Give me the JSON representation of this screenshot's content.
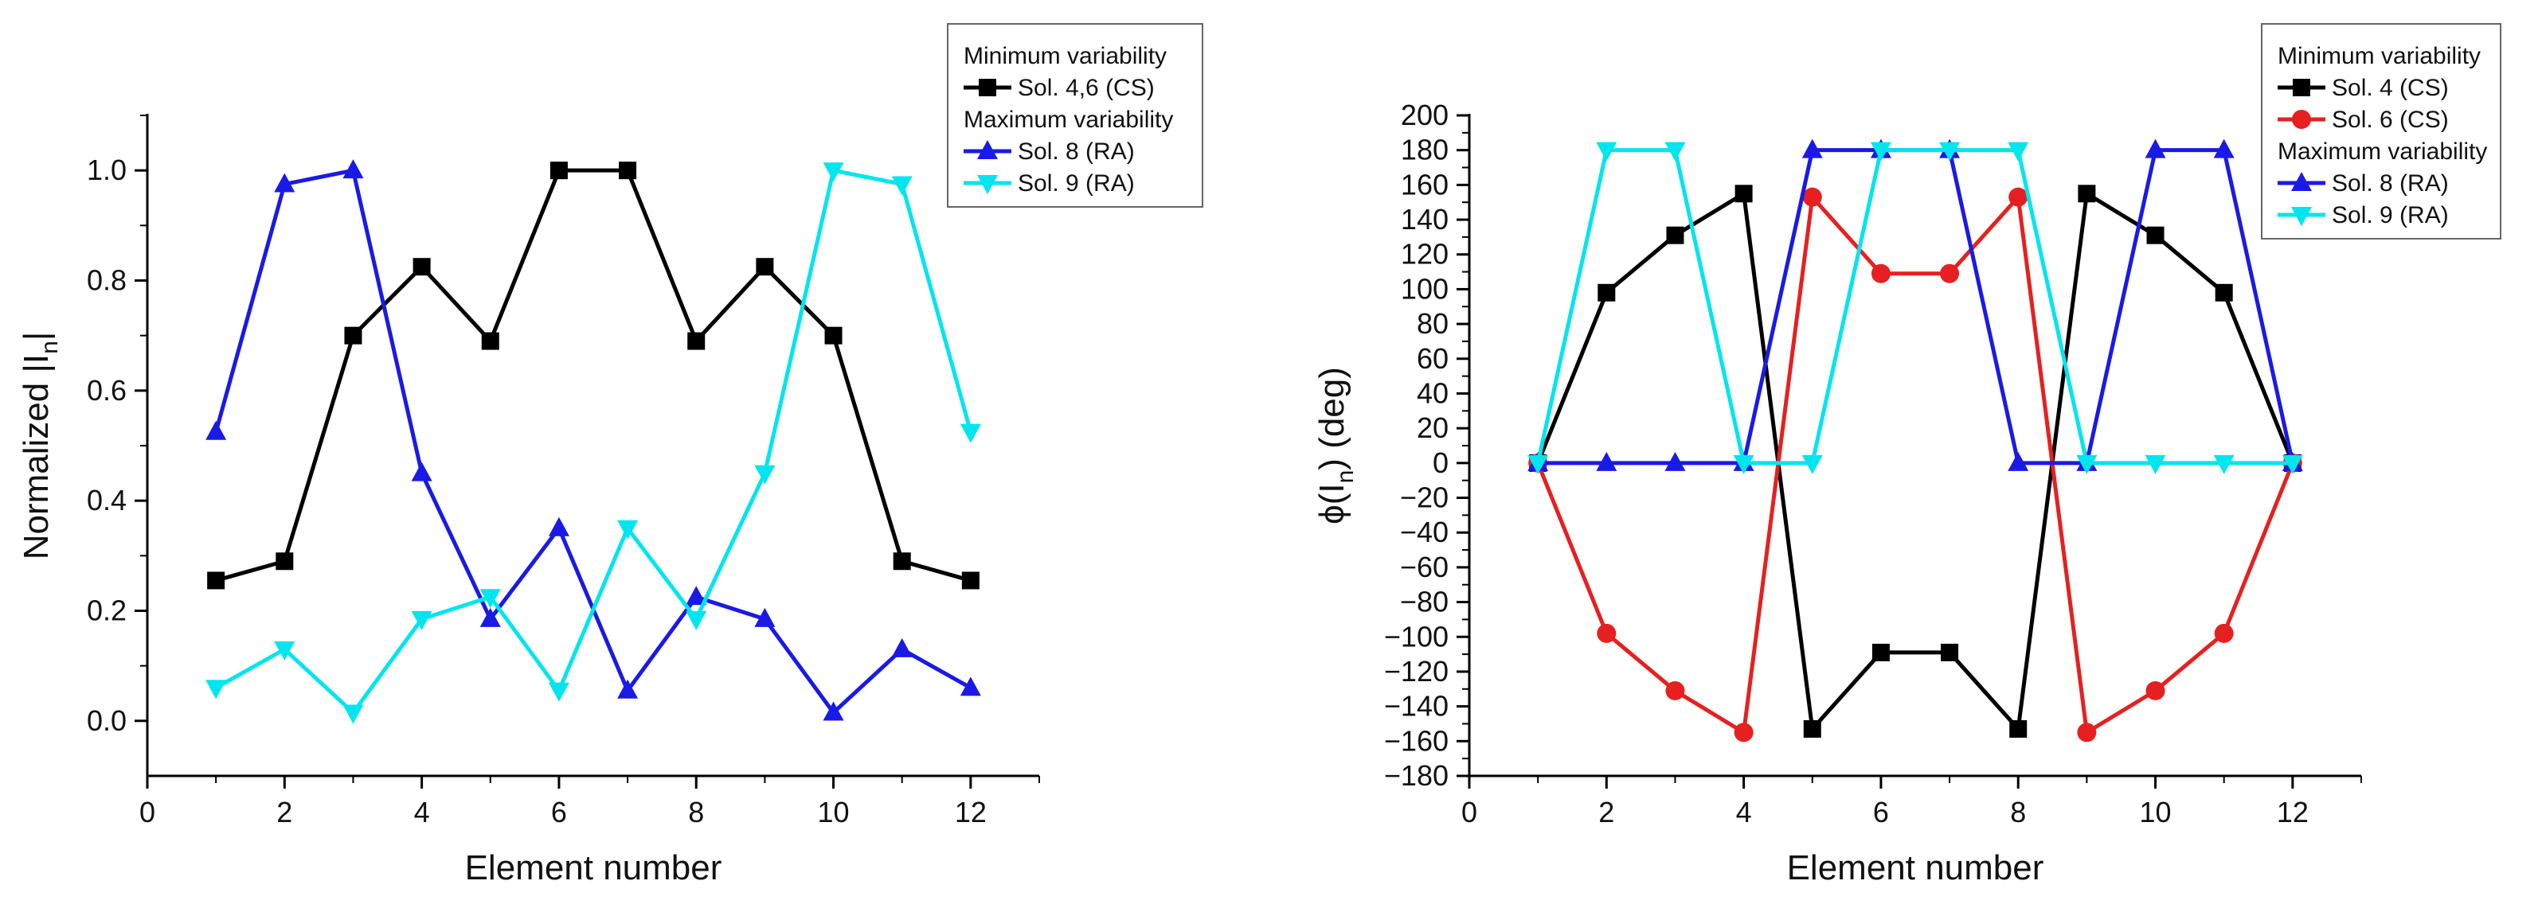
{
  "chart_data": [
    {
      "type": "line",
      "title": "",
      "xlabel": "Element number",
      "ylabel": "Normalized |I",
      "ylabel_subscript": "n",
      "ylabel_suffix": "|",
      "xlim": [
        0,
        13
      ],
      "ylim": [
        -0.1,
        1.1
      ],
      "xticks": [
        0,
        2,
        4,
        6,
        8,
        10,
        12
      ],
      "yticks": [
        0.0,
        0.2,
        0.4,
        0.6,
        0.8,
        1.0
      ],
      "ytick_labels": [
        "0.0",
        "0.2",
        "0.4",
        "0.6",
        "0.8",
        "1.0"
      ],
      "grid": false,
      "legend_position": "top-right",
      "legend": [
        {
          "kind": "header",
          "text": "Minimum variability"
        },
        {
          "kind": "series",
          "series_index": 0
        },
        {
          "kind": "header",
          "text": "Maximum variability"
        },
        {
          "kind": "series",
          "series_index": 1
        },
        {
          "kind": "series",
          "series_index": 2
        }
      ],
      "series": [
        {
          "name": "Sol. 4,6 (CS)",
          "color": "#000000",
          "marker": "square",
          "x": [
            1,
            2,
            3,
            4,
            5,
            6,
            7,
            8,
            9,
            10,
            11,
            12
          ],
          "y": [
            0.255,
            0.29,
            0.7,
            0.825,
            0.69,
            1.0,
            1.0,
            0.69,
            0.825,
            0.7,
            0.29,
            0.255
          ]
        },
        {
          "name": "Sol. 8 (RA)",
          "color": "#1a1ae6",
          "marker": "triangle-up",
          "x": [
            1,
            2,
            3,
            4,
            5,
            6,
            7,
            8,
            9,
            10,
            11,
            12
          ],
          "y": [
            0.525,
            0.975,
            1.0,
            0.45,
            0.185,
            0.35,
            0.055,
            0.225,
            0.185,
            0.015,
            0.13,
            0.06
          ]
        },
        {
          "name": "Sol. 9 (RA)",
          "color": "#00e5ee",
          "marker": "triangle-down",
          "x": [
            1,
            2,
            3,
            4,
            5,
            6,
            7,
            8,
            9,
            10,
            11,
            12
          ],
          "y": [
            0.06,
            0.13,
            0.015,
            0.185,
            0.225,
            0.055,
            0.35,
            0.185,
            0.45,
            1.0,
            0.975,
            0.525
          ]
        }
      ]
    },
    {
      "type": "line",
      "title": "",
      "xlabel": "Element number",
      "ylabel": "ϕ(I",
      "ylabel_subscript": "n",
      "ylabel_suffix": ") (deg)",
      "xlim": [
        0,
        13
      ],
      "ylim": [
        -180,
        200
      ],
      "xticks": [
        0,
        2,
        4,
        6,
        8,
        10,
        12
      ],
      "yticks": [
        -180,
        -160,
        -140,
        -120,
        -100,
        -80,
        -60,
        -40,
        -20,
        0,
        20,
        40,
        60,
        80,
        100,
        120,
        140,
        160,
        180,
        200
      ],
      "ytick_labels": [
        "−180",
        "−160",
        "−140",
        "−120",
        "−100",
        "−80",
        "−60",
        "−40",
        "−20",
        "0",
        "20",
        "40",
        "60",
        "80",
        "100",
        "120",
        "140",
        "160",
        "180",
        "200"
      ],
      "grid": false,
      "legend_position": "top-right",
      "legend": [
        {
          "kind": "header",
          "text": "Minimum variability"
        },
        {
          "kind": "series",
          "series_index": 0
        },
        {
          "kind": "series",
          "series_index": 1
        },
        {
          "kind": "header",
          "text": "Maximum variability"
        },
        {
          "kind": "series",
          "series_index": 2
        },
        {
          "kind": "series",
          "series_index": 3
        }
      ],
      "series": [
        {
          "name": "Sol. 4 (CS)",
          "color": "#000000",
          "marker": "square",
          "x": [
            1,
            2,
            3,
            4,
            5,
            6,
            7,
            8,
            9,
            10,
            11,
            12
          ],
          "y": [
            0,
            98,
            131,
            155,
            -153,
            -109,
            -109,
            -153,
            155,
            131,
            98,
            0
          ]
        },
        {
          "name": "Sol. 6 (CS)",
          "color": "#e62020",
          "marker": "circle",
          "x": [
            1,
            2,
            3,
            4,
            5,
            6,
            7,
            8,
            9,
            10,
            11,
            12
          ],
          "y": [
            0,
            -98,
            -131,
            -155,
            153,
            109,
            109,
            153,
            -155,
            -131,
            -98,
            0
          ]
        },
        {
          "name": "Sol. 8 (RA)",
          "color": "#1a1ae6",
          "marker": "triangle-up",
          "x": [
            1,
            2,
            3,
            4,
            5,
            6,
            7,
            8,
            9,
            10,
            11,
            12
          ],
          "y": [
            0,
            0,
            0,
            0,
            180,
            180,
            180,
            0,
            0,
            180,
            180,
            0
          ]
        },
        {
          "name": "Sol. 9 (RA)",
          "color": "#00e5ee",
          "marker": "triangle-down",
          "x": [
            1,
            2,
            3,
            4,
            5,
            6,
            7,
            8,
            9,
            10,
            11,
            12
          ],
          "y": [
            0,
            180,
            180,
            0,
            0,
            180,
            180,
            180,
            0,
            0,
            0,
            0
          ]
        }
      ]
    }
  ]
}
